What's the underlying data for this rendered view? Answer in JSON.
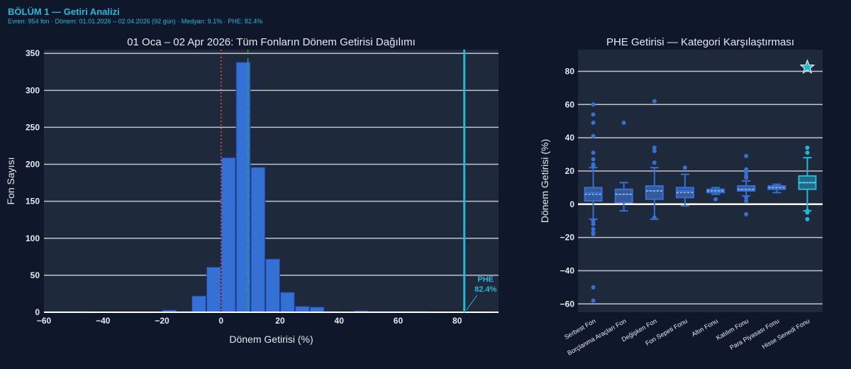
{
  "header": {
    "title": "BÖLÜM 1 — Getiri Analizi",
    "subtitle": "Evren: 954 fon · Dönem: 01.01.2026 – 02.04.2026 (92 gün) · Medyan: 9.1% · PHE: 82.4%"
  },
  "colors": {
    "background": "#0f172a",
    "plot_bg": "#1e293b",
    "bar": "#3570d4",
    "accent": "#22b8d8",
    "median_line": "#22a866",
    "zero_line": "#e05252",
    "grid": "#c0c4cc",
    "text": "#e6e9ef"
  },
  "chart_data": [
    {
      "type": "histogram",
      "title": "01 Oca – 02 Apr 2026: Tüm Fonların Dönem Getirisi Dağılımı",
      "xlabel": "Dönem Getirisi (%)",
      "ylabel": "Fon Sayısı",
      "xlim": [
        -60,
        94
      ],
      "ylim": [
        0,
        355
      ],
      "xticks": [
        -60,
        -40,
        -20,
        0,
        20,
        40,
        60,
        80
      ],
      "xtick_labels": [
        "−60",
        "−40",
        "−20",
        "0",
        "20",
        "40",
        "60",
        "80"
      ],
      "yticks": [
        0,
        50,
        100,
        150,
        200,
        250,
        300,
        350
      ],
      "bin_width": 5,
      "bins": [
        {
          "start": -60,
          "count": 1
        },
        {
          "start": -55,
          "count": 1
        },
        {
          "start": -50,
          "count": 1
        },
        {
          "start": -20,
          "count": 3
        },
        {
          "start": -15,
          "count": 1
        },
        {
          "start": -10,
          "count": 22
        },
        {
          "start": -5,
          "count": 61
        },
        {
          "start": 0,
          "count": 209
        },
        {
          "start": 5,
          "count": 338
        },
        {
          "start": 10,
          "count": 196
        },
        {
          "start": 15,
          "count": 72
        },
        {
          "start": 20,
          "count": 27
        },
        {
          "start": 25,
          "count": 8
        },
        {
          "start": 30,
          "count": 7
        },
        {
          "start": 35,
          "count": 1
        },
        {
          "start": 45,
          "count": 2
        },
        {
          "start": 50,
          "count": 1
        },
        {
          "start": 55,
          "count": 1
        },
        {
          "start": 60,
          "count": 1
        },
        {
          "start": 65,
          "count": 1
        }
      ],
      "reference_lines": [
        {
          "name": "zero",
          "x": 0,
          "style": "dotted"
        },
        {
          "name": "median",
          "x": 9.1,
          "style": "dashed"
        },
        {
          "name": "phe",
          "x": 82.4,
          "style": "solid"
        }
      ],
      "annotation": {
        "label": "PHE",
        "value": "82.4%",
        "x": 82.4,
        "y": 0
      }
    },
    {
      "type": "box",
      "title": "PHE Getirisi — Kategori Karşılaştırması",
      "xlabel": "",
      "ylabel": "Dönem Getirisi (%)",
      "ylim": [
        -65,
        93
      ],
      "yticks": [
        -60,
        -40,
        -20,
        0,
        20,
        40,
        60,
        80
      ],
      "ytick_labels": [
        "−60",
        "−40",
        "−20",
        "0",
        "20",
        "40",
        "60",
        "80"
      ],
      "categories": [
        {
          "name": "Serbest Fon",
          "q1": 2,
          "median": 7,
          "q3": 10,
          "mean": 6,
          "lo": -9,
          "hi": 22,
          "outliers": [
            60,
            54,
            49,
            41,
            31,
            27,
            24,
            23,
            -10,
            -12,
            -15,
            -17,
            -18,
            -50,
            -58
          ]
        },
        {
          "name": "Borçlanma Araçları Fon",
          "q1": 1,
          "median": 6,
          "q3": 9,
          "mean": 6,
          "lo": -4,
          "hi": 13,
          "outliers": [
            49
          ]
        },
        {
          "name": "Değişken Fon",
          "q1": 3,
          "median": 8,
          "q3": 11,
          "mean": 8,
          "lo": -9,
          "hi": 22,
          "outliers": [
            62,
            34,
            32,
            25,
            -8
          ]
        },
        {
          "name": "Fon Sepeti Fonu",
          "q1": 4,
          "median": 8,
          "q3": 10,
          "mean": 7,
          "lo": -1,
          "hi": 18,
          "outliers": [
            22
          ]
        },
        {
          "name": "Altın Fonu",
          "q1": 7,
          "median": 8,
          "q3": 9,
          "mean": 8,
          "lo": 6,
          "hi": 10,
          "outliers": [
            3
          ]
        },
        {
          "name": "Katılım Fonu",
          "q1": 8,
          "median": 9,
          "q3": 11,
          "mean": 9,
          "lo": 5,
          "hi": 14,
          "outliers": [
            29,
            21,
            20,
            19,
            17,
            16,
            4,
            2,
            -6
          ]
        },
        {
          "name": "Para Piyasası Fonu",
          "q1": 9,
          "median": 10,
          "q3": 11,
          "mean": 10,
          "lo": 7,
          "hi": 12,
          "outliers": []
        },
        {
          "name": "Hisse Senedi Fonu",
          "q1": 9,
          "median": 13,
          "q3": 17,
          "mean": 13,
          "lo": -4,
          "hi": 28,
          "outliers": [
            34,
            31,
            -4,
            -5,
            -9
          ],
          "highlight": true
        }
      ],
      "marker": {
        "name": "PHE",
        "category": "Hisse Senedi Fonu",
        "value": 82.4,
        "symbol": "star"
      }
    }
  ]
}
